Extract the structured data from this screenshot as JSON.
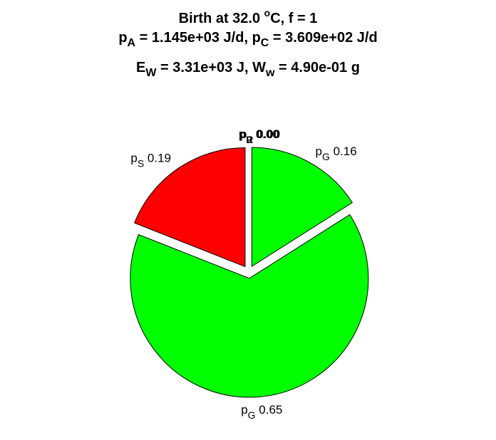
{
  "title": {
    "line1_a": "Birth at 32.0 ",
    "line1_sup": "o",
    "line1_b": "C, f = 1",
    "line2_pA_sym": "p",
    "line2_pA_sub": "A",
    "line2_pA_val": " = 1.145e+03 J/d, ",
    "line2_pC_sym": "p",
    "line2_pC_sub": "C",
    "line2_pC_val": " = 3.609e+02 J/d",
    "line3_E_sym": "E",
    "line3_E_sub": "W",
    "line3_E_val": " = 3.31e+03 J, ",
    "line3_W_sym": "W",
    "line3_W_sub": "w",
    "line3_W_val": " = 4.90e-01 g"
  },
  "chart_data": {
    "type": "pie",
    "slices": [
      {
        "sym": "p",
        "sub": "G",
        "value": 0.16,
        "text": "0.16",
        "color": "#00ff00"
      },
      {
        "sym": "p",
        "sub": "G",
        "value": 0.65,
        "text": "0.65",
        "color": "#00ff00"
      },
      {
        "sym": "p",
        "sub": "S",
        "value": 0.19,
        "text": "0.19",
        "color": "#ff0000"
      },
      {
        "sym": "p",
        "sub": "R",
        "value": 0.0,
        "text": "0.00",
        "color": "#0000ff"
      },
      {
        "sym": "p",
        "sub": "J",
        "value": 0.0,
        "text": "0.00",
        "color": "#ff00ff"
      }
    ]
  }
}
